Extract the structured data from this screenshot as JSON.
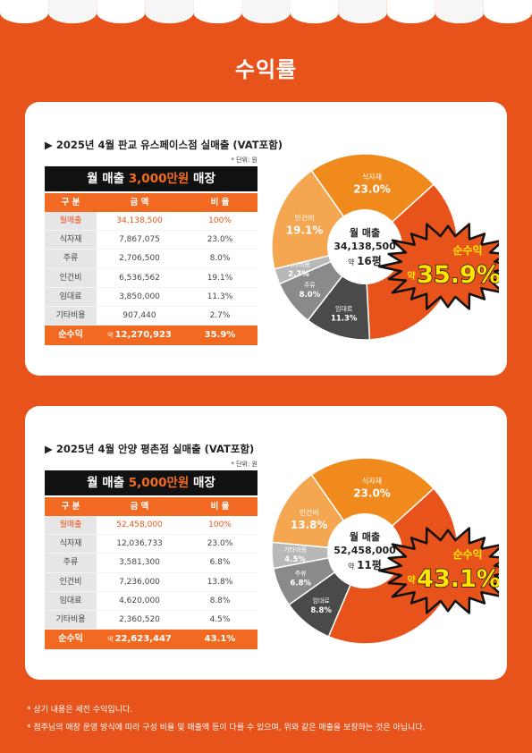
{
  "title": "수익률",
  "colors": {
    "background": "#e8531b",
    "accent": "#f26a21",
    "burst_text": "#ffe600",
    "card": "#ffffff"
  },
  "stores": [
    {
      "heading": "▶ 2025년 4월 판교 유스페이스점 실매출 (VAT포함)",
      "unit_note": "* 단위: 원",
      "banner": {
        "prefix": "월 매출 ",
        "highlight": "3,000만원",
        "suffix": " 매장"
      },
      "columns": [
        "구 분",
        "금 액",
        "비 율"
      ],
      "rows": [
        {
          "label": "월매출",
          "amount": "34,138,500",
          "ratio": "100%"
        },
        {
          "label": "식자재",
          "amount": "7,867,075",
          "ratio": "23.0%"
        },
        {
          "label": "주류",
          "amount": "2,706,500",
          "ratio": "8.0%"
        },
        {
          "label": "인건비",
          "amount": "6,536,562",
          "ratio": "19.1%"
        },
        {
          "label": "임대료",
          "amount": "3,850,000",
          "ratio": "11.3%"
        },
        {
          "label": "기타비용",
          "amount": "907,440",
          "ratio": "2.7%"
        }
      ],
      "total": {
        "label": "순수익",
        "approx": "약",
        "amount": "12,270,923",
        "ratio": "35.9%"
      },
      "center": {
        "label": "월 매출",
        "amount": "34,138,500",
        "approx": "약",
        "size": "16평"
      },
      "burst": {
        "label": "순수익",
        "approx": "약",
        "value": "35.9%"
      },
      "chart_data": {
        "type": "pie",
        "slices": [
          {
            "name": "식자재",
            "value": 23.0,
            "label": "23.0%",
            "color": "#f08a1c"
          },
          {
            "name": "순수익",
            "value": 35.9,
            "label": "35.9%",
            "color": "#e8531b"
          },
          {
            "name": "임대료",
            "value": 11.3,
            "label": "11.3%",
            "color": "#4a4a4a"
          },
          {
            "name": "주류",
            "value": 8.0,
            "label": "8.0%",
            "color": "#8a8a8a"
          },
          {
            "name": "기타비용",
            "value": 2.7,
            "label": "2.7%",
            "color": "#b8b8b8"
          },
          {
            "name": "인건비",
            "value": 19.1,
            "label": "19.1%",
            "color": "#f4a651"
          }
        ]
      }
    },
    {
      "heading": "▶ 2025년 4월 안양 평촌점 실매출 (VAT포함)",
      "unit_note": "* 단위: 원",
      "banner": {
        "prefix": "월 매출 ",
        "highlight": "5,000만원",
        "suffix": " 매장"
      },
      "columns": [
        "구 분",
        "금 액",
        "비 율"
      ],
      "rows": [
        {
          "label": "월매출",
          "amount": "52,458,000",
          "ratio": "100%"
        },
        {
          "label": "식자재",
          "amount": "12,036,733",
          "ratio": "23.0%"
        },
        {
          "label": "주류",
          "amount": "3,581,300",
          "ratio": "6.8%"
        },
        {
          "label": "인건비",
          "amount": "7,236,000",
          "ratio": "13.8%"
        },
        {
          "label": "임대료",
          "amount": "4,620,000",
          "ratio": "8.8%"
        },
        {
          "label": "기타비용",
          "amount": "2,360,520",
          "ratio": "4.5%"
        }
      ],
      "total": {
        "label": "순수익",
        "approx": "약",
        "amount": "22,623,447",
        "ratio": "43.1%"
      },
      "center": {
        "label": "월 매출",
        "amount": "52,458,000",
        "approx": "약",
        "size": "11평"
      },
      "burst": {
        "label": "순수익",
        "approx": "약",
        "value": "43.1%"
      },
      "chart_data": {
        "type": "pie",
        "slices": [
          {
            "name": "식자재",
            "value": 23.0,
            "label": "23.0%",
            "color": "#f08a1c"
          },
          {
            "name": "순수익",
            "value": 43.1,
            "label": "43.1%",
            "color": "#e8531b"
          },
          {
            "name": "임대료",
            "value": 8.8,
            "label": "8.8%",
            "color": "#4a4a4a"
          },
          {
            "name": "주류",
            "value": 6.8,
            "label": "6.8%",
            "color": "#8a8a8a"
          },
          {
            "name": "기타비용",
            "value": 4.5,
            "label": "4.5%",
            "color": "#b8b8b8"
          },
          {
            "name": "인건비",
            "value": 13.8,
            "label": "13.8%",
            "color": "#f4a651"
          }
        ]
      }
    }
  ],
  "notes": [
    "* 상기 내용은 세전 수익입니다.",
    "* 점주님의 매장 운영 방식에 따라 구성 비율 및 매출액 등이 다를 수 있으며, 위와 같은 매출을 보장하는 것은 아닙니다."
  ]
}
